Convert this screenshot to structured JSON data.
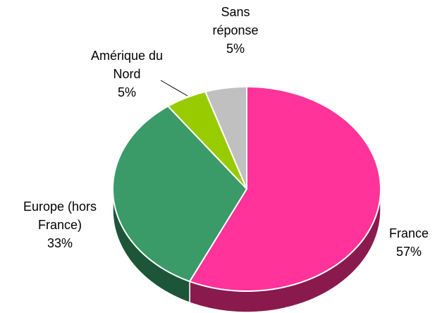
{
  "chart_data": {
    "type": "pie3d",
    "categories": [
      "France",
      "Europe (hors France)",
      "Amérique du Nord",
      "Sans réponse"
    ],
    "values": [
      57,
      33,
      5,
      5
    ],
    "value_labels": [
      "57%",
      "33%",
      "5%",
      "5%"
    ],
    "colors": [
      "#ff3399",
      "#3a9a68",
      "#99cc00",
      "#c0c0c0"
    ],
    "side_colors": [
      "#8a1a4e",
      "#1d5538",
      "#5c7a00",
      "#808080"
    ]
  }
}
